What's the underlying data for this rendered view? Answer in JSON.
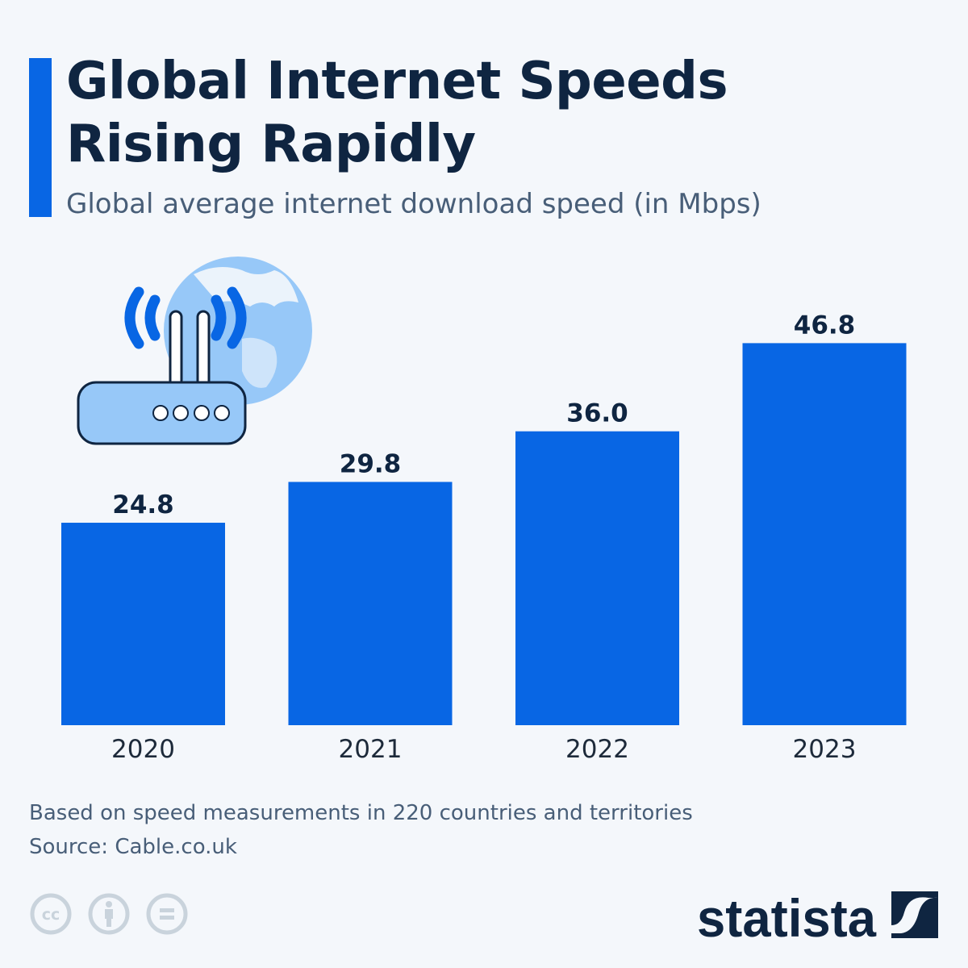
{
  "title_line1": "Global Internet Speeds",
  "title_line2": "Rising Rapidly",
  "subtitle": "Global average internet download speed (in Mbps)",
  "notes": {
    "description": "Based on speed measurements in 220 countries and territories",
    "source": "Source: Cable.co.uk"
  },
  "logo": "statista",
  "colors": {
    "bar": "#0866e4",
    "text": "#0f2541",
    "subtle": "#485e78",
    "accent": "#0866e4"
  },
  "icons": [
    "router-icon",
    "globe-icon",
    "creative-commons-icon",
    "attribution-icon",
    "no-derivatives-icon",
    "statista-logo"
  ],
  "chart_data": {
    "type": "bar",
    "categories": [
      "2020",
      "2021",
      "2022",
      "2023"
    ],
    "values": [
      24.8,
      29.8,
      36.0,
      46.8
    ],
    "labels": [
      "24.8",
      "29.8",
      "36.0",
      "46.8"
    ],
    "title": "Global Internet Speeds Rising Rapidly",
    "subtitle": "Global average internet download speed (in Mbps)",
    "ylim": [
      0,
      50
    ],
    "grid": false,
    "legend": "none"
  }
}
